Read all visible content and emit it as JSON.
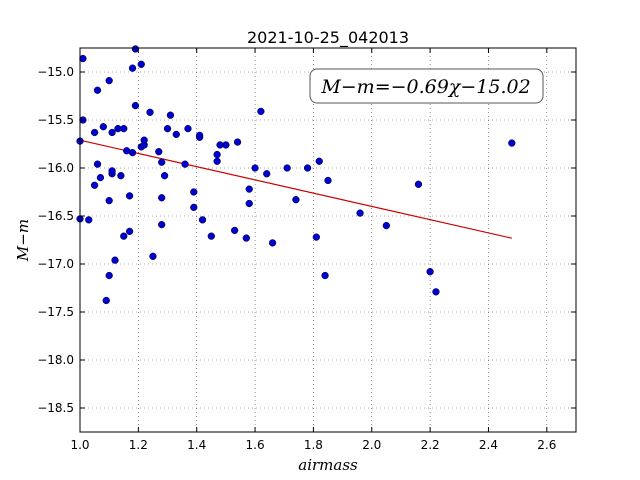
{
  "chart_data": {
    "type": "scatter",
    "title": "2021-10-25_042013",
    "xlabel": "airmass",
    "ylabel": "M−m",
    "xlim": [
      1.0,
      2.7
    ],
    "ylim": [
      -14.75,
      -18.75
    ],
    "y_inverted": true,
    "grid": true,
    "x_ticks": [
      1.0,
      1.2,
      1.4,
      1.6,
      1.8,
      2.0,
      2.2,
      2.4,
      2.6
    ],
    "x_tick_labels": [
      "1.0",
      "1.2",
      "1.4",
      "1.6",
      "1.8",
      "2.0",
      "2.2",
      "2.4",
      "2.6"
    ],
    "y_ticks": [
      -15.0,
      -15.5,
      -16.0,
      -16.5,
      -17.0,
      -17.5,
      -18.0,
      -18.5
    ],
    "y_tick_labels": [
      "−15.0",
      "−15.5",
      "−16.0",
      "−16.5",
      "−17.0",
      "−17.5",
      "−18.0",
      "−18.5"
    ],
    "annotation": "M−m=−0.69χ−15.02",
    "fit": {
      "slope": -0.69,
      "intercept": -15.02,
      "x_range": [
        1.0,
        2.48
      ],
      "color": "#cc0000"
    },
    "marker_color": "#0000cc",
    "points": [
      [
        1.01,
        -14.86
      ],
      [
        1.01,
        -15.5
      ],
      [
        1.0,
        -15.72
      ],
      [
        1.0,
        -16.53
      ],
      [
        1.03,
        -16.54
      ],
      [
        1.05,
        -15.63
      ],
      [
        1.06,
        -15.19
      ],
      [
        1.06,
        -15.96
      ],
      [
        1.05,
        -16.18
      ],
      [
        1.07,
        -16.1
      ],
      [
        1.08,
        -15.57
      ],
      [
        1.09,
        -17.38
      ],
      [
        1.1,
        -15.09
      ],
      [
        1.1,
        -16.34
      ],
      [
        1.1,
        -17.12
      ],
      [
        1.11,
        -15.63
      ],
      [
        1.11,
        -16.06
      ],
      [
        1.11,
        -16.03
      ],
      [
        1.12,
        -16.96
      ],
      [
        1.13,
        -15.59
      ],
      [
        1.14,
        -16.08
      ],
      [
        1.15,
        -16.71
      ],
      [
        1.15,
        -15.59
      ],
      [
        1.16,
        -15.82
      ],
      [
        1.17,
        -16.29
      ],
      [
        1.17,
        -16.66
      ],
      [
        1.18,
        -14.96
      ],
      [
        1.18,
        -15.84
      ],
      [
        1.19,
        -14.76
      ],
      [
        1.19,
        -15.35
      ],
      [
        1.21,
        -14.92
      ],
      [
        1.21,
        -15.78
      ],
      [
        1.22,
        -15.76
      ],
      [
        1.22,
        -15.71
      ],
      [
        1.24,
        -15.42
      ],
      [
        1.25,
        -16.92
      ],
      [
        1.27,
        -15.83
      ],
      [
        1.28,
        -15.94
      ],
      [
        1.28,
        -16.59
      ],
      [
        1.28,
        -16.31
      ],
      [
        1.29,
        -16.08
      ],
      [
        1.3,
        -15.59
      ],
      [
        1.31,
        -15.45
      ],
      [
        1.33,
        -15.65
      ],
      [
        1.36,
        -15.96
      ],
      [
        1.37,
        -15.59
      ],
      [
        1.39,
        -16.25
      ],
      [
        1.39,
        -16.41
      ],
      [
        1.41,
        -15.68
      ],
      [
        1.41,
        -15.66
      ],
      [
        1.42,
        -16.54
      ],
      [
        1.45,
        -16.71
      ],
      [
        1.47,
        -15.86
      ],
      [
        1.47,
        -15.93
      ],
      [
        1.48,
        -15.76
      ],
      [
        1.5,
        -15.76
      ],
      [
        1.53,
        -16.65
      ],
      [
        1.54,
        -15.73
      ],
      [
        1.57,
        -16.73
      ],
      [
        1.58,
        -16.37
      ],
      [
        1.58,
        -16.22
      ],
      [
        1.6,
        -16.0
      ],
      [
        1.62,
        -15.41
      ],
      [
        1.64,
        -16.06
      ],
      [
        1.66,
        -16.78
      ],
      [
        1.71,
        -16.0
      ],
      [
        1.74,
        -16.33
      ],
      [
        1.78,
        -16.0
      ],
      [
        1.81,
        -16.72
      ],
      [
        1.82,
        -15.93
      ],
      [
        1.84,
        -17.12
      ],
      [
        1.85,
        -16.13
      ],
      [
        1.96,
        -16.47
      ],
      [
        2.05,
        -16.6
      ],
      [
        2.16,
        -16.17
      ],
      [
        2.2,
        -17.08
      ],
      [
        2.22,
        -17.29
      ],
      [
        2.48,
        -15.74
      ]
    ]
  }
}
